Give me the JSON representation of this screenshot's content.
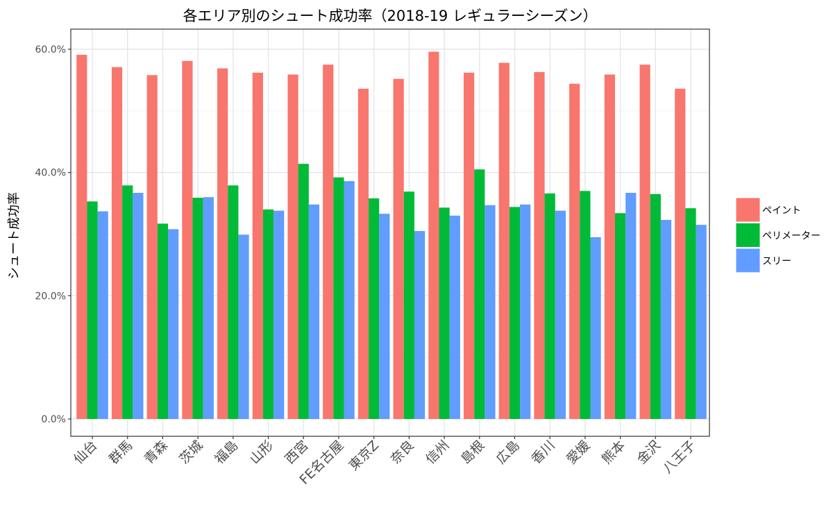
{
  "chart_data": {
    "type": "bar",
    "title": "各エリア別のシュート成功率（2018-19 レギュラーシーズン）",
    "xlabel": "",
    "ylabel": "シュート成功率",
    "ylim": [
      0,
      0.63
    ],
    "yticks": [
      0,
      0.2,
      0.4,
      0.6
    ],
    "ytick_labels": [
      "0.0%",
      "20.0%",
      "40.0%",
      "60.0%"
    ],
    "grid": true,
    "legend_position": "right",
    "categories": [
      "仙台",
      "群馬",
      "青森",
      "茨城",
      "福島",
      "山形",
      "西宮",
      "FE名古屋",
      "東京Z",
      "奈良",
      "信州",
      "島根",
      "広島",
      "香川",
      "愛媛",
      "熊本",
      "金沢",
      "八王子"
    ],
    "series": [
      {
        "name": "ペイント",
        "color": "#F8766D",
        "values": [
          0.591,
          0.571,
          0.558,
          0.581,
          0.569,
          0.562,
          0.559,
          0.575,
          0.536,
          0.552,
          0.596,
          0.562,
          0.578,
          0.563,
          0.544,
          0.559,
          0.575,
          0.536
        ]
      },
      {
        "name": "ペリメーター",
        "color": "#00BA38",
        "values": [
          0.353,
          0.379,
          0.317,
          0.359,
          0.379,
          0.34,
          0.414,
          0.392,
          0.358,
          0.369,
          0.343,
          0.405,
          0.344,
          0.366,
          0.37,
          0.334,
          0.365,
          0.342
        ]
      },
      {
        "name": "スリー",
        "color": "#619CFF",
        "values": [
          0.337,
          0.367,
          0.308,
          0.36,
          0.299,
          0.338,
          0.348,
          0.386,
          0.333,
          0.305,
          0.33,
          0.347,
          0.348,
          0.338,
          0.295,
          0.367,
          0.323,
          0.315
        ]
      }
    ]
  }
}
